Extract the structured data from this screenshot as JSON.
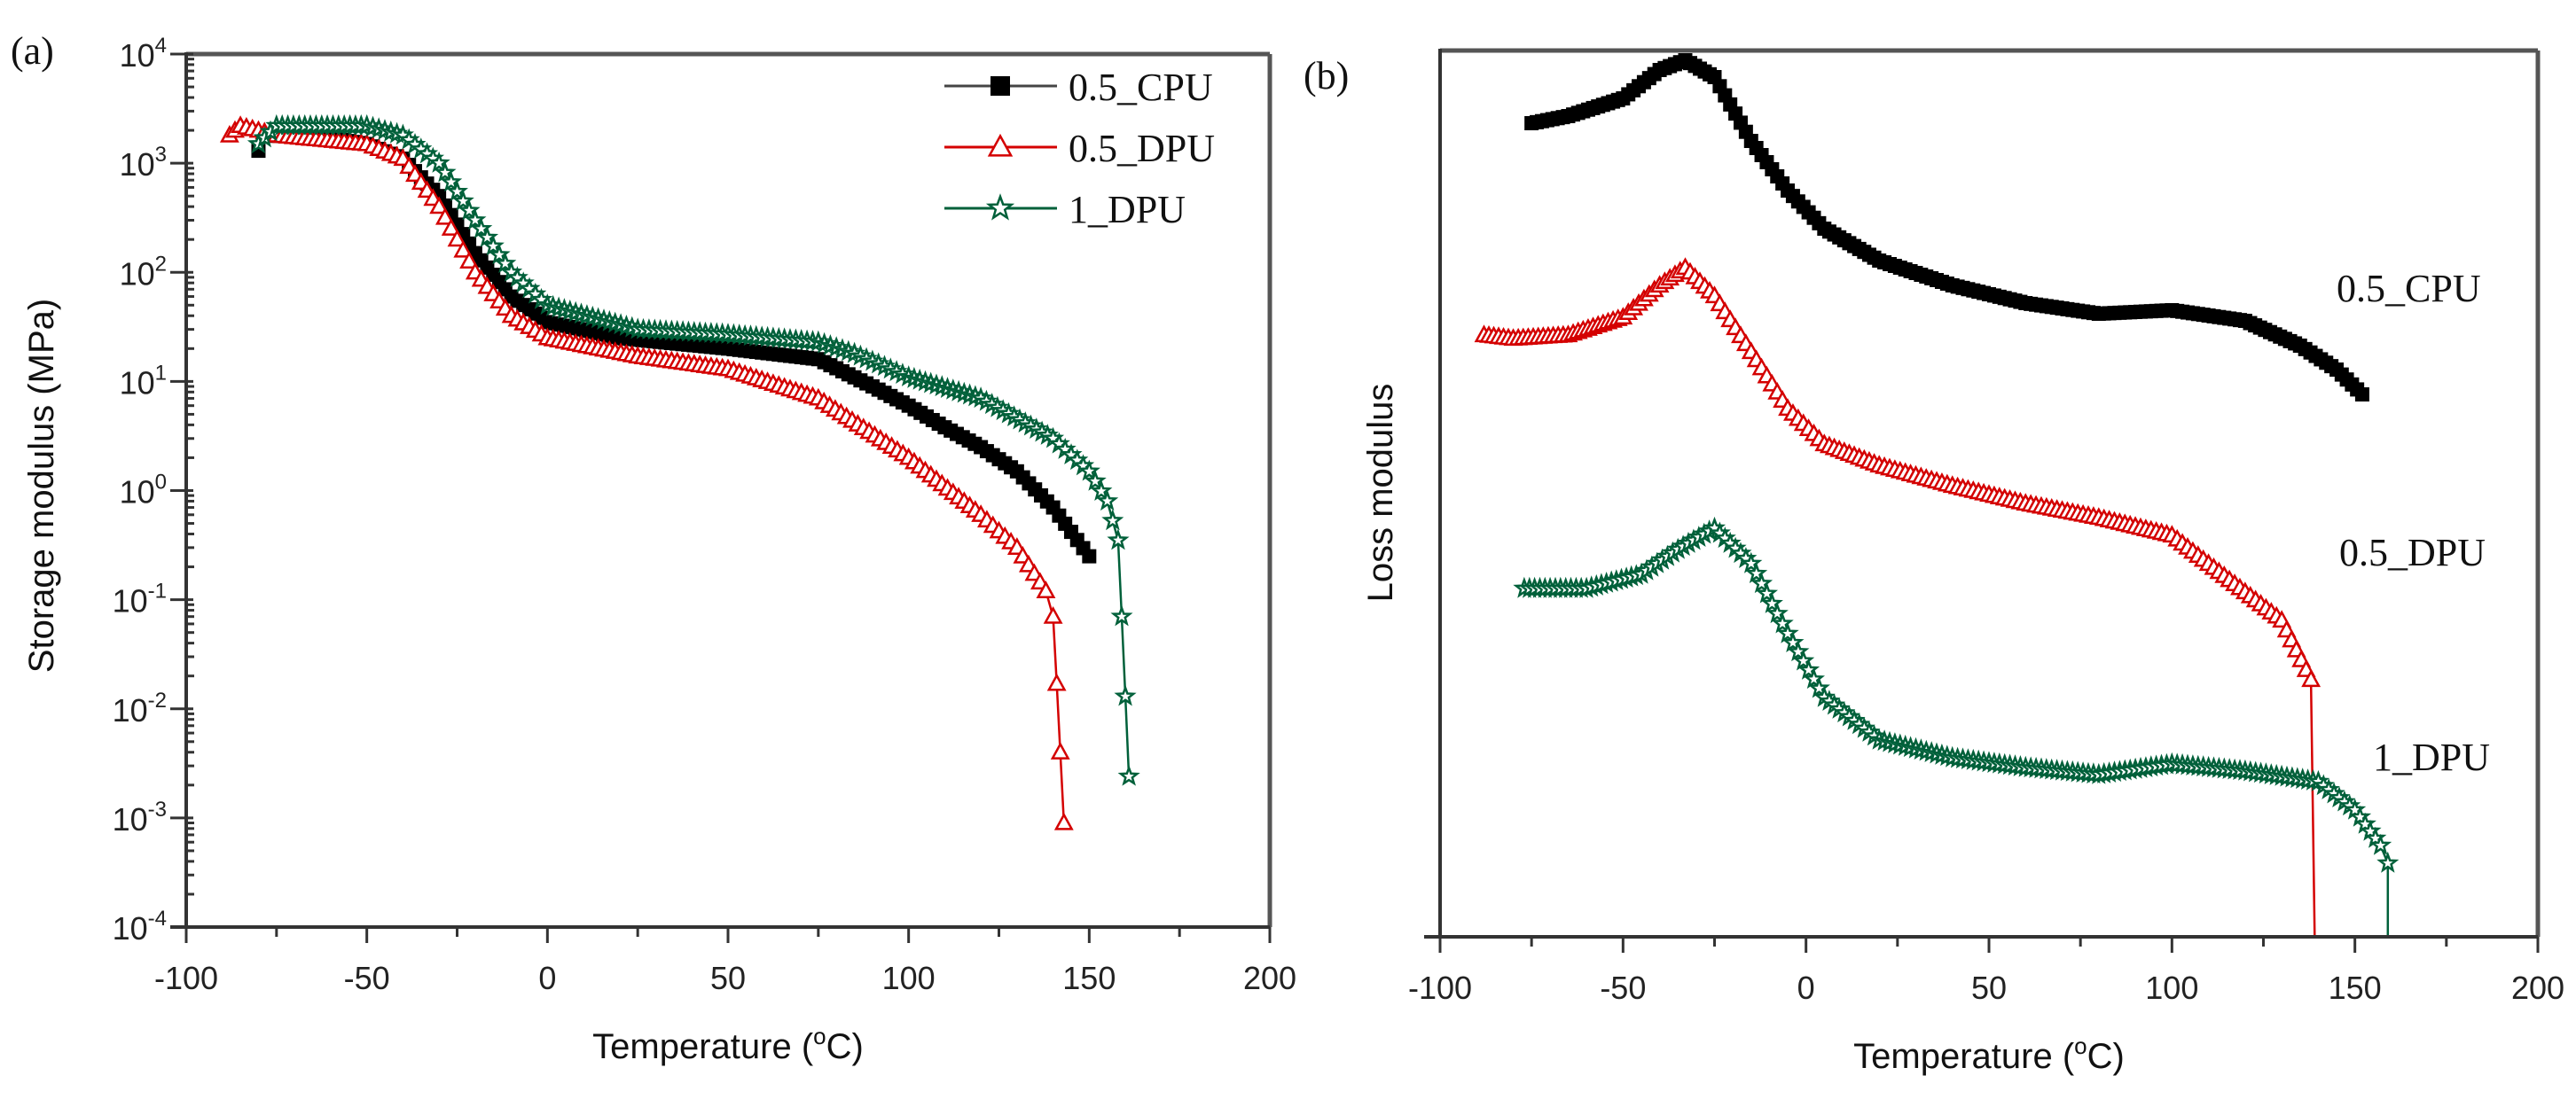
{
  "chart_data": [
    {
      "panel_label": "(a)",
      "type": "scatter",
      "xlabel_parts": [
        "Temperature (",
        "o",
        "C)"
      ],
      "ylabel": "Storage modulus (MPa)",
      "xlim": [
        -100,
        200
      ],
      "ylim_log10": [
        -4,
        4
      ],
      "yscale": "log",
      "x_ticks": [
        -100,
        -50,
        0,
        50,
        100,
        150,
        200
      ],
      "y_tick_exponents": [
        -4,
        -3,
        -2,
        -1,
        0,
        1,
        2,
        3,
        4
      ],
      "legend_position": "top-right",
      "series": [
        {
          "name": "0.5_CPU",
          "color": "#000000",
          "marker": "filled-square",
          "points": [
            [
              -80,
              1300
            ],
            [
              -78,
              1800
            ],
            [
              -60,
              1700
            ],
            [
              -50,
              1500
            ],
            [
              -40,
              1100
            ],
            [
              -30,
              500
            ],
            [
              -20,
              150
            ],
            [
              -10,
              60
            ],
            [
              0,
              35
            ],
            [
              20,
              25
            ],
            [
              50,
              20
            ],
            [
              75,
              16
            ],
            [
              90,
              9
            ],
            [
              100,
              6
            ],
            [
              110,
              3.8
            ],
            [
              120,
              2.5
            ],
            [
              130,
              1.5
            ],
            [
              140,
              0.7
            ],
            [
              150,
              0.25
            ]
          ]
        },
        {
          "name": "0.5_DPU",
          "color": "#d40000",
          "marker": "open-triangle",
          "points": [
            [
              -88,
              1800
            ],
            [
              -85,
              2200
            ],
            [
              -75,
              1800
            ],
            [
              -50,
              1500
            ],
            [
              -40,
              1100
            ],
            [
              -30,
              400
            ],
            [
              -20,
              100
            ],
            [
              -10,
              40
            ],
            [
              0,
              25
            ],
            [
              25,
              17
            ],
            [
              50,
              13
            ],
            [
              75,
              7
            ],
            [
              100,
              2
            ],
            [
              120,
              0.6
            ],
            [
              130,
              0.3
            ],
            [
              138,
              0.12
            ],
            [
              140,
              0.07
            ],
            [
              141,
              0.017
            ],
            [
              142,
              0.004
            ],
            [
              143,
              0.0009
            ]
          ]
        },
        {
          "name": "1_DPU",
          "color": "#00603a",
          "marker": "open-star",
          "points": [
            [
              -80,
              1500
            ],
            [
              -75,
              2200
            ],
            [
              -50,
              2200
            ],
            [
              -40,
              1800
            ],
            [
              -30,
              1000
            ],
            [
              -20,
              300
            ],
            [
              -10,
              100
            ],
            [
              0,
              50
            ],
            [
              25,
              30
            ],
            [
              50,
              27
            ],
            [
              75,
              23
            ],
            [
              85,
              18
            ],
            [
              100,
              11
            ],
            [
              120,
              7
            ],
            [
              140,
              3
            ],
            [
              150,
              1.5
            ],
            [
              155,
              0.8
            ],
            [
              158,
              0.35
            ],
            [
              159,
              0.07
            ],
            [
              160,
              0.013
            ],
            [
              161,
              0.0024
            ]
          ]
        }
      ]
    },
    {
      "panel_label": "(b)",
      "type": "scatter",
      "xlabel_parts": [
        "Temperature (",
        "o",
        "C)"
      ],
      "ylabel": "Loss modulus",
      "xlim": [
        -100,
        200
      ],
      "ylim": [
        0,
        1
      ],
      "y_units": "arbitrary (offset curves, no y ticks)",
      "x_ticks": [
        -100,
        -50,
        0,
        50,
        100,
        150,
        200
      ],
      "series": [
        {
          "name": "0.5_CPU",
          "color": "#000000",
          "marker": "filled-square",
          "points": [
            [
              -75,
              0.918
            ],
            [
              -65,
              0.926
            ],
            [
              -50,
              0.946
            ],
            [
              -40,
              0.978
            ],
            [
              -33,
              0.989
            ],
            [
              -25,
              0.97
            ],
            [
              -15,
              0.898
            ],
            [
              -5,
              0.842
            ],
            [
              5,
              0.799
            ],
            [
              20,
              0.763
            ],
            [
              40,
              0.735
            ],
            [
              60,
              0.715
            ],
            [
              80,
              0.703
            ],
            [
              100,
              0.707
            ],
            [
              120,
              0.695
            ],
            [
              135,
              0.667
            ],
            [
              145,
              0.64
            ],
            [
              152,
              0.612
            ]
          ]
        },
        {
          "name": "0.5_DPU",
          "color": "#d40000",
          "marker": "open-triangle",
          "points": [
            [
              -88,
              0.679
            ],
            [
              -80,
              0.675
            ],
            [
              -65,
              0.679
            ],
            [
              -50,
              0.699
            ],
            [
              -40,
              0.735
            ],
            [
              -33,
              0.755
            ],
            [
              -25,
              0.723
            ],
            [
              -15,
              0.66
            ],
            [
              -5,
              0.596
            ],
            [
              5,
              0.556
            ],
            [
              20,
              0.532
            ],
            [
              40,
              0.509
            ],
            [
              60,
              0.489
            ],
            [
              80,
              0.473
            ],
            [
              100,
              0.453
            ],
            [
              120,
              0.389
            ],
            [
              130,
              0.357
            ],
            [
              138,
              0.29
            ]
          ],
          "drop_to_axis_at": 139
        },
        {
          "name": "1_DPU",
          "color": "#00603a",
          "marker": "open-star",
          "points": [
            [
              -77,
              0.393
            ],
            [
              -60,
              0.393
            ],
            [
              -45,
              0.409
            ],
            [
              -35,
              0.437
            ],
            [
              -25,
              0.461
            ],
            [
              -15,
              0.421
            ],
            [
              -5,
              0.342
            ],
            [
              5,
              0.27
            ],
            [
              20,
              0.222
            ],
            [
              40,
              0.202
            ],
            [
              60,
              0.191
            ],
            [
              80,
              0.183
            ],
            [
              100,
              0.195
            ],
            [
              120,
              0.187
            ],
            [
              140,
              0.175
            ],
            [
              150,
              0.143
            ],
            [
              157,
              0.103
            ],
            [
              159,
              0.083
            ]
          ],
          "drop_to_axis_at": 159
        }
      ]
    }
  ]
}
